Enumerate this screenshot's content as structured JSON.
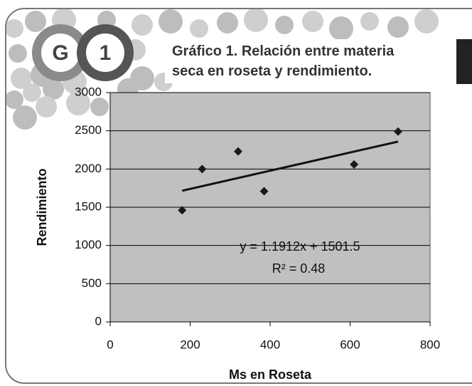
{
  "header": {
    "badges": [
      "G",
      "1"
    ]
  },
  "chart_data": {
    "type": "scatter",
    "title": "Gráfico 1. Relación entre materia seca en roseta y rendimiento.",
    "x_label": "Ms en Roseta",
    "y_label": "Rendimiento",
    "x": [
      180,
      230,
      320,
      385,
      610,
      720
    ],
    "values": [
      1460,
      2000,
      2230,
      1710,
      2060,
      2490
    ],
    "color": "#1a1a1a",
    "trendline": {
      "x": [
        180,
        720
      ],
      "y": [
        1716,
        2359
      ],
      "color": "#111111"
    },
    "annotations": [
      "y = 1.1912x + 1501.5",
      "R² = 0.48"
    ],
    "xlim": [
      0,
      800
    ],
    "xticks": [
      0,
      200,
      400,
      600,
      800
    ],
    "ylim": [
      0,
      3000
    ],
    "yticks": [
      0,
      500,
      1000,
      1500,
      2000,
      2500,
      3000
    ],
    "grid": true,
    "plot_background": "#c0c0c0"
  }
}
